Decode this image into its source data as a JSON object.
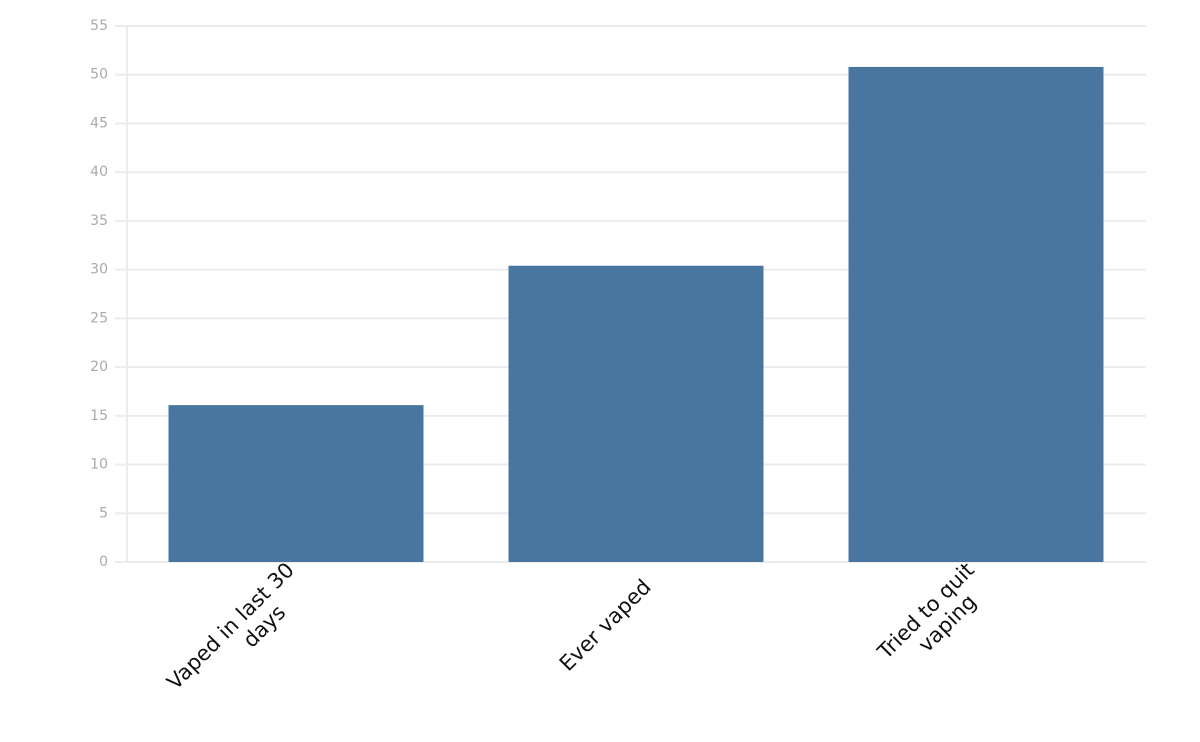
{
  "chart_data": {
    "type": "bar",
    "categories": [
      "Vaped in last 30\ndays",
      "Ever vaped",
      "Tried to quit\nvaping"
    ],
    "values": [
      16.1,
      30.4,
      50.8
    ],
    "color": "#48769e",
    "ylim": [
      0,
      55
    ],
    "yticks": [
      0,
      5,
      10,
      15,
      20,
      25,
      30,
      35,
      40,
      45,
      50,
      55
    ],
    "grid": true
  }
}
